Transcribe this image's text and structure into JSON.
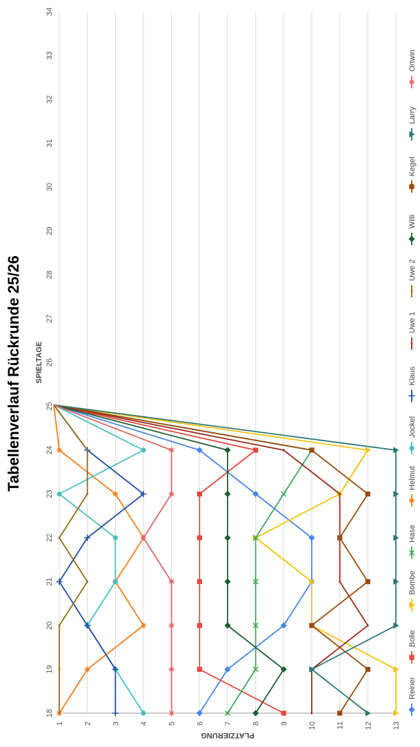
{
  "chart_data": {
    "type": "line",
    "title": "Tabellenverlauf Rückrunde 25/26",
    "xlabel": "SPIELTAGE",
    "ylabel": "PLATZIERUNG",
    "xlim": [
      18,
      34
    ],
    "ylim": [
      1,
      13
    ],
    "x_ticks": [
      "18",
      "19",
      "20",
      "21",
      "22",
      "23",
      "24",
      "25",
      "26",
      "27",
      "28",
      "29",
      "30",
      "31",
      "32",
      "33",
      "34"
    ],
    "y_ticks": [
      "1",
      "2",
      "3",
      "4",
      "5",
      "6",
      "7",
      "8",
      "9",
      "10",
      "11",
      "12",
      "13"
    ],
    "grid": true,
    "legend_position": "right",
    "series": [
      {
        "name": "Reiner",
        "color": "#4A86E8",
        "marker": "diamond",
        "x": [
          18,
          19,
          20,
          21,
          22,
          23,
          24
        ],
        "values": [
          6,
          7,
          9,
          10,
          10,
          8,
          6
        ]
      },
      {
        "name": "Bolle",
        "color": "#E8453C",
        "marker": "square",
        "x": [
          18,
          19,
          20,
          21,
          22,
          23,
          24
        ],
        "values": [
          9,
          6,
          6,
          6,
          6,
          6,
          8
        ]
      },
      {
        "name": "Bombe",
        "color": "#F4C20D",
        "marker": "triangle",
        "x": [
          18,
          19,
          20,
          21,
          22,
          23,
          24
        ],
        "values": [
          13,
          13,
          10,
          10,
          8,
          11,
          12
        ]
      },
      {
        "name": "Hase",
        "color": "#3DA85A",
        "marker": "x",
        "x": [
          18,
          19,
          20,
          21,
          22,
          23,
          24
        ],
        "values": [
          7,
          8,
          8,
          8,
          8,
          9,
          10
        ]
      },
      {
        "name": "Helmut",
        "color": "#F37F1B",
        "marker": "star",
        "x": [
          18,
          19,
          20,
          21,
          22,
          23,
          24
        ],
        "values": [
          1,
          2,
          4,
          3,
          4,
          3,
          1
        ]
      },
      {
        "name": "Jockel",
        "color": "#4BBFBF",
        "marker": "circle",
        "x": [
          18,
          19,
          20,
          21,
          22,
          23,
          24
        ],
        "values": [
          4,
          3,
          2,
          3,
          3,
          1,
          4
        ]
      },
      {
        "name": "Klaus",
        "color": "#1F4EA8",
        "marker": "plus",
        "x": [
          18,
          19,
          20,
          21,
          22,
          23,
          24
        ],
        "values": [
          3,
          3,
          2,
          1,
          2,
          4,
          2
        ]
      },
      {
        "name": "Uwe 1",
        "color": "#9E2A1B",
        "marker": "dash",
        "x": [
          18,
          19,
          20,
          21,
          22,
          23,
          24
        ],
        "values": [
          10,
          10,
          12,
          11,
          11,
          11,
          9
        ]
      },
      {
        "name": "Uwe 2",
        "color": "#8C6D15",
        "marker": "dash",
        "x": [
          18,
          19,
          20,
          21,
          22,
          23,
          24
        ],
        "values": [
          1,
          1,
          1,
          2,
          1,
          2,
          2
        ]
      },
      {
        "name": "Willi",
        "color": "#1E5E2F",
        "marker": "diamond",
        "x": [
          18,
          19,
          20,
          21,
          22,
          23,
          24
        ],
        "values": [
          8,
          9,
          7,
          7,
          7,
          7,
          7
        ]
      },
      {
        "name": "Kegel",
        "color": "#9A4B0B",
        "marker": "square",
        "x": [
          18,
          19,
          20,
          21,
          22,
          23,
          24
        ],
        "values": [
          11,
          12,
          10,
          12,
          11,
          12,
          10
        ]
      },
      {
        "name": "Larry",
        "color": "#2B7772",
        "marker": "triangle",
        "x": [
          18,
          19,
          20,
          21,
          22,
          23,
          24
        ],
        "values": [
          12,
          10,
          13,
          13,
          13,
          13,
          13
        ]
      },
      {
        "name": "Ortwin",
        "color": "#E06666",
        "marker": "star",
        "x": [
          18,
          19,
          20,
          21,
          22,
          23,
          24
        ],
        "values": [
          5,
          5,
          5,
          5,
          4,
          5,
          5
        ]
      }
    ],
    "extra_segment_note": "all series drop to value 0 at x=25 (drawn as lines exiting the plot area)"
  }
}
